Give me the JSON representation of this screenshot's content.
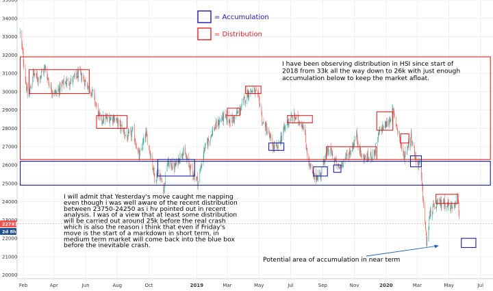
{
  "chart_data": {
    "type": "candlestick",
    "title": "",
    "xlabel": "",
    "ylabel": "",
    "ylim": [
      19800,
      35000
    ],
    "xlim": [
      "2018-01-20",
      "2020-07-25"
    ],
    "y_ticks": [
      20000,
      21000,
      22000,
      23000,
      24000,
      25000,
      26000,
      27000,
      28000,
      29000,
      30000,
      31000,
      32000,
      33000,
      34000,
      35000
    ],
    "x_ticks": [
      {
        "label": "Feb",
        "date": "2018-02-01",
        "bold": false
      },
      {
        "label": "Apr",
        "date": "2018-04-01",
        "bold": false
      },
      {
        "label": "Jun",
        "date": "2018-06-01",
        "bold": false
      },
      {
        "label": "Aug",
        "date": "2018-08-01",
        "bold": false
      },
      {
        "label": "Oct",
        "date": "2018-10-01",
        "bold": false
      },
      {
        "label": "2019",
        "date": "2019-01-01",
        "bold": true
      },
      {
        "label": "Mar",
        "date": "2019-03-01",
        "bold": false
      },
      {
        "label": "May",
        "date": "2019-05-01",
        "bold": false
      },
      {
        "label": "Jul",
        "date": "2019-07-01",
        "bold": false
      },
      {
        "label": "Sep",
        "date": "2019-09-01",
        "bold": false
      },
      {
        "label": "Nov",
        "date": "2019-11-01",
        "bold": false
      },
      {
        "label": "2020",
        "date": "2020-01-01",
        "bold": true
      },
      {
        "label": "Mar",
        "date": "2020-03-01",
        "bold": false
      },
      {
        "label": "May",
        "date": "2020-05-01",
        "bold": false
      },
      {
        "label": "Jul",
        "date": "2020-07-01",
        "bold": false
      }
    ],
    "price_path": [
      [
        "2018-01-26",
        33200
      ],
      [
        "2018-02-06",
        30500
      ],
      [
        "2018-02-10",
        29500
      ],
      [
        "2018-02-20",
        31000
      ],
      [
        "2018-03-01",
        30700
      ],
      [
        "2018-03-15",
        31300
      ],
      [
        "2018-03-25",
        30200
      ],
      [
        "2018-04-05",
        29900
      ],
      [
        "2018-04-20",
        30500
      ],
      [
        "2018-05-05",
        30600
      ],
      [
        "2018-05-20",
        31000
      ],
      [
        "2018-06-01",
        30500
      ],
      [
        "2018-06-15",
        29900
      ],
      [
        "2018-06-28",
        28500
      ],
      [
        "2018-07-10",
        28500
      ],
      [
        "2018-07-25",
        28600
      ],
      [
        "2018-08-10",
        28000
      ],
      [
        "2018-08-20",
        27500
      ],
      [
        "2018-09-01",
        27800
      ],
      [
        "2018-09-12",
        26400
      ],
      [
        "2018-09-25",
        27700
      ],
      [
        "2018-10-05",
        26500
      ],
      [
        "2018-10-12",
        25300
      ],
      [
        "2018-10-20",
        25600
      ],
      [
        "2018-10-30",
        24700
      ],
      [
        "2018-11-05",
        26100
      ],
      [
        "2018-11-20",
        25900
      ],
      [
        "2018-12-05",
        26800
      ],
      [
        "2018-12-20",
        25800
      ],
      [
        "2019-01-04",
        25100
      ],
      [
        "2019-01-15",
        26800
      ],
      [
        "2019-02-01",
        27900
      ],
      [
        "2019-02-20",
        28600
      ],
      [
        "2019-03-10",
        28400
      ],
      [
        "2019-03-25",
        29000
      ],
      [
        "2019-04-08",
        29900
      ],
      [
        "2019-04-20",
        30100
      ],
      [
        "2019-05-01",
        29600
      ],
      [
        "2019-05-08",
        28300
      ],
      [
        "2019-05-15",
        28000
      ],
      [
        "2019-05-28",
        27000
      ],
      [
        "2019-06-05",
        26900
      ],
      [
        "2019-06-15",
        27700
      ],
      [
        "2019-06-28",
        28500
      ],
      [
        "2019-07-10",
        28600
      ],
      [
        "2019-07-25",
        28200
      ],
      [
        "2019-08-05",
        26100
      ],
      [
        "2019-08-15",
        25300
      ],
      [
        "2019-08-28",
        25500
      ],
      [
        "2019-09-05",
        26500
      ],
      [
        "2019-09-15",
        26800
      ],
      [
        "2019-10-01",
        25800
      ],
      [
        "2019-10-10",
        26200
      ],
      [
        "2019-10-25",
        26800
      ],
      [
        "2019-11-05",
        27600
      ],
      [
        "2019-11-15",
        26400
      ],
      [
        "2019-11-28",
        26400
      ],
      [
        "2019-12-10",
        26700
      ],
      [
        "2019-12-20",
        27900
      ],
      [
        "2020-01-05",
        28300
      ],
      [
        "2020-01-14",
        28900
      ],
      [
        "2020-01-22",
        28100
      ],
      [
        "2020-02-04",
        26400
      ],
      [
        "2020-02-18",
        27600
      ],
      [
        "2020-02-28",
        26200
      ],
      [
        "2020-03-06",
        26100
      ],
      [
        "2020-03-12",
        24300
      ],
      [
        "2020-03-19",
        21700
      ],
      [
        "2020-03-26",
        23400
      ],
      [
        "2020-04-06",
        23800
      ],
      [
        "2020-04-20",
        24000
      ],
      [
        "2020-05-05",
        23700
      ],
      [
        "2020-05-18",
        24300
      ],
      [
        "2020-05-22",
        22900
      ]
    ],
    "current_price_label": "22797",
    "countdown_label": "2d 8h",
    "price_line_value": 22797,
    "legend": [
      {
        "label": "= Accumulation",
        "color": "#1a1aa6"
      },
      {
        "label": "= Distribution",
        "color": "#e02020"
      }
    ],
    "zones": [
      {
        "type": "distribution",
        "start": "2018-01-26",
        "end": "2020-07-20",
        "low": 26300,
        "high": 31900
      },
      {
        "type": "accumulation",
        "start": "2018-01-26",
        "end": "2020-07-20",
        "low": 24900,
        "high": 26200
      },
      {
        "type": "distribution",
        "start": "2018-02-12",
        "end": "2018-06-08",
        "low": 29900,
        "high": 31200
      },
      {
        "type": "distribution",
        "start": "2018-06-22",
        "end": "2018-08-20",
        "low": 28000,
        "high": 28700
      },
      {
        "type": "accumulation",
        "start": "2018-10-18",
        "end": "2018-12-28",
        "low": 25400,
        "high": 26300
      },
      {
        "type": "distribution",
        "start": "2019-03-01",
        "end": "2019-03-25",
        "low": 28700,
        "high": 29100
      },
      {
        "type": "distribution",
        "start": "2019-04-05",
        "end": "2019-05-05",
        "low": 29900,
        "high": 30300
      },
      {
        "type": "accumulation",
        "start": "2019-05-20",
        "end": "2019-06-18",
        "low": 26800,
        "high": 27200
      },
      {
        "type": "distribution",
        "start": "2019-06-25",
        "end": "2019-08-12",
        "low": 28300,
        "high": 28700
      },
      {
        "type": "accumulation",
        "start": "2019-08-14",
        "end": "2019-09-10",
        "low": 25400,
        "high": 25900
      },
      {
        "type": "accumulation",
        "start": "2019-09-22",
        "end": "2019-10-06",
        "low": 25600,
        "high": 26000
      },
      {
        "type": "distribution",
        "start": "2019-09-08",
        "end": "2019-12-14",
        "low": 26300,
        "high": 27000
      },
      {
        "type": "distribution",
        "start": "2019-12-14",
        "end": "2020-01-14",
        "low": 27900,
        "high": 28900
      },
      {
        "type": "distribution",
        "start": "2020-01-29",
        "end": "2020-02-14",
        "low": 27200,
        "high": 27700
      },
      {
        "type": "accumulation",
        "start": "2020-02-17",
        "end": "2020-03-09",
        "low": 25900,
        "high": 26500
      },
      {
        "type": "distribution",
        "start": "2020-04-06",
        "end": "2020-05-18",
        "low": 23900,
        "high": 24400
      },
      {
        "type": "accumulation",
        "start": "2020-05-25",
        "end": "2020-06-22",
        "low": 21500,
        "high": 22000
      }
    ],
    "annotations": {
      "top_note": [
        "I have been observing distribution in HSI since start of",
        "2018 from 33k all the way down to 26k with just enough",
        "accumulation below to keep the market afloat."
      ],
      "bottom_note": [
        "I will admit that Yesterday's move caught me napping",
        "even though i was well aware of the recent distribution",
        "between 23750-24250 as i hv pointed out in recent",
        "analysis. I was of a view that at least some distribution",
        "will be carried out around 25k before the real crash",
        "which is also the reason i think that even if Friday's",
        "move is the start of a markdown in short term, in",
        "medium term market will come back into the blue box",
        "before the inevitable crash."
      ],
      "arrow_note": "Potential area of accumulation in near term"
    },
    "colors": {
      "up": "#26a69a",
      "down": "#ef5350",
      "accumulation": "#1a1aa6",
      "distribution": "#e02020",
      "note_blue": "#1f5fb4",
      "badge_price": "#ef5350",
      "badge_time": "#1f4f8f",
      "price_line": "#ef9a9a"
    }
  }
}
